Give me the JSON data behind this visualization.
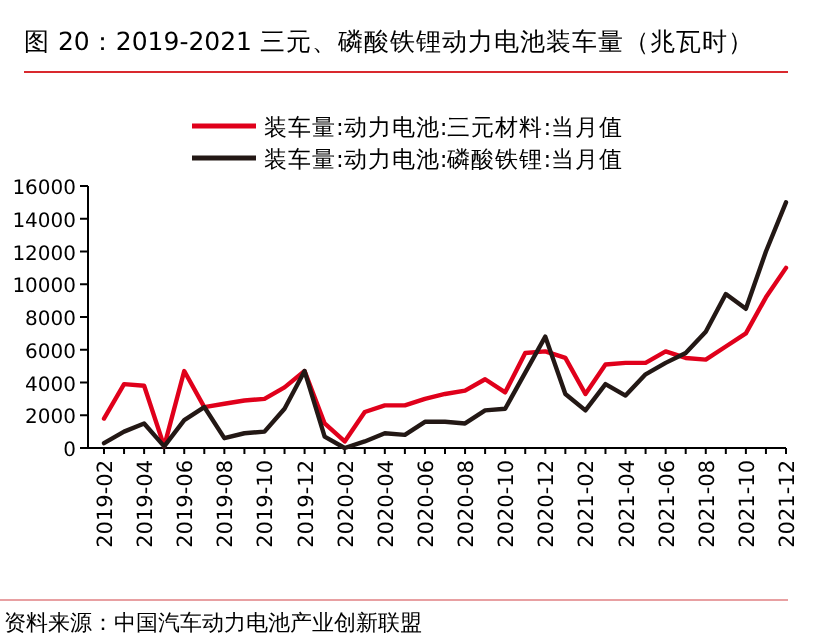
{
  "chart_data": {
    "type": "line",
    "title": "图 20：2019-2021 三元、磷酸铁锂动力电池装车量（兆瓦时）",
    "annotations": [
      "资料来源：中国汽车动力电池产业创新联盟"
    ],
    "categories": [
      "2019-02",
      null,
      "2019-04",
      null,
      "2019-06",
      null,
      "2019-08",
      null,
      "2019-10",
      null,
      "2019-12",
      null,
      "2020-02",
      null,
      "2020-04",
      null,
      "2020-06",
      null,
      "2020-08",
      null,
      "2020-10",
      null,
      "2020-12",
      null,
      "2021-02",
      null,
      "2021-04",
      null,
      "2021-06",
      null,
      "2021-08",
      null,
      "2021-10",
      null,
      "2021-12"
    ],
    "series": [
      {
        "name": "装车量:动力电池:三元材料:当月值",
        "color": "#e0001b",
        "values": [
          1800,
          3900,
          3800,
          100,
          4700,
          2500,
          2700,
          2900,
          3000,
          3700,
          4700,
          1500,
          400,
          2200,
          2600,
          2600,
          3000,
          3300,
          3500,
          4200,
          3400,
          5800,
          5900,
          5500,
          3300,
          5100,
          5200,
          5200,
          5900,
          5500,
          5400,
          6200,
          7000,
          9200,
          11000
        ]
      },
      {
        "name": "装车量:动力电池:磷酸铁锂:当月值",
        "color": "#231815",
        "values": [
          300,
          1000,
          1500,
          100,
          1700,
          2500,
          600,
          900,
          1000,
          2400,
          4700,
          700,
          0,
          400,
          900,
          800,
          1600,
          1600,
          1500,
          2300,
          2400,
          4600,
          6800,
          3300,
          2300,
          3900,
          3200,
          4500,
          5200,
          5800,
          7100,
          9400,
          8500,
          12000,
          15000
        ]
      }
    ],
    "ylim": [
      0,
      16000
    ],
    "yticks": [
      0,
      2000,
      4000,
      6000,
      8000,
      10000,
      12000,
      14000,
      16000
    ],
    "legend": "top",
    "grid": false
  }
}
